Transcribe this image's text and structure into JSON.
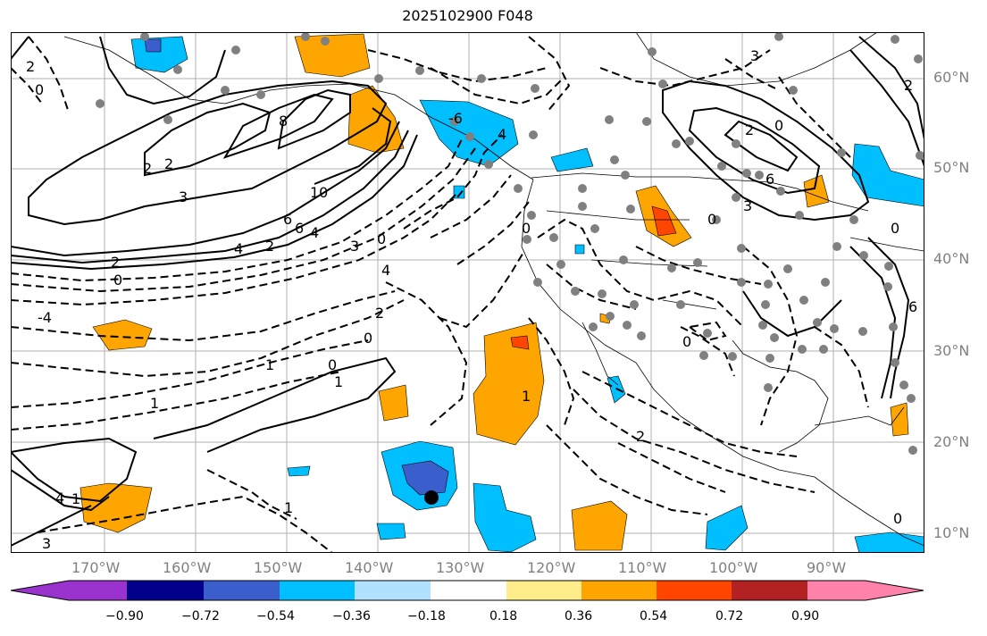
{
  "title": "2025102900 F048",
  "lat_labels": [
    "60°N",
    "50°N",
    "40°N",
    "30°N",
    "20°N",
    "10°N"
  ],
  "lon_labels": [
    "170°W",
    "160°W",
    "150°W",
    "140°W",
    "130°W",
    "120°W",
    "110°W",
    "100°W",
    "90°W"
  ],
  "contour_labels": [
    "2",
    "0",
    "2",
    "3",
    "6",
    "8",
    "10",
    "6",
    "4",
    "2",
    "0",
    "2",
    "0",
    "2",
    "3",
    "4",
    "-4",
    "4",
    "2",
    "0",
    "1",
    "0",
    "1",
    "1",
    "1",
    "4",
    "3",
    "0",
    "1",
    "2",
    "0",
    "-6",
    "3",
    "4",
    "6",
    "2",
    "0",
    "3",
    "0",
    "6",
    "0",
    "1",
    "2",
    "0"
  ],
  "colorbar": {
    "colors": [
      "#9a32cd",
      "#00008b",
      "#3a5fcd",
      "#00bfff",
      "#b0e2ff",
      "#ffffff",
      "#ffec8b",
      "#ffa500",
      "#ff4500",
      "#b22222",
      "#ff82ab"
    ],
    "tick_labels": [
      "−0.90",
      "−0.72",
      "−0.54",
      "−0.36",
      "−0.18",
      "0.18",
      "0.36",
      "0.54",
      "0.72",
      "0.90"
    ]
  }
}
